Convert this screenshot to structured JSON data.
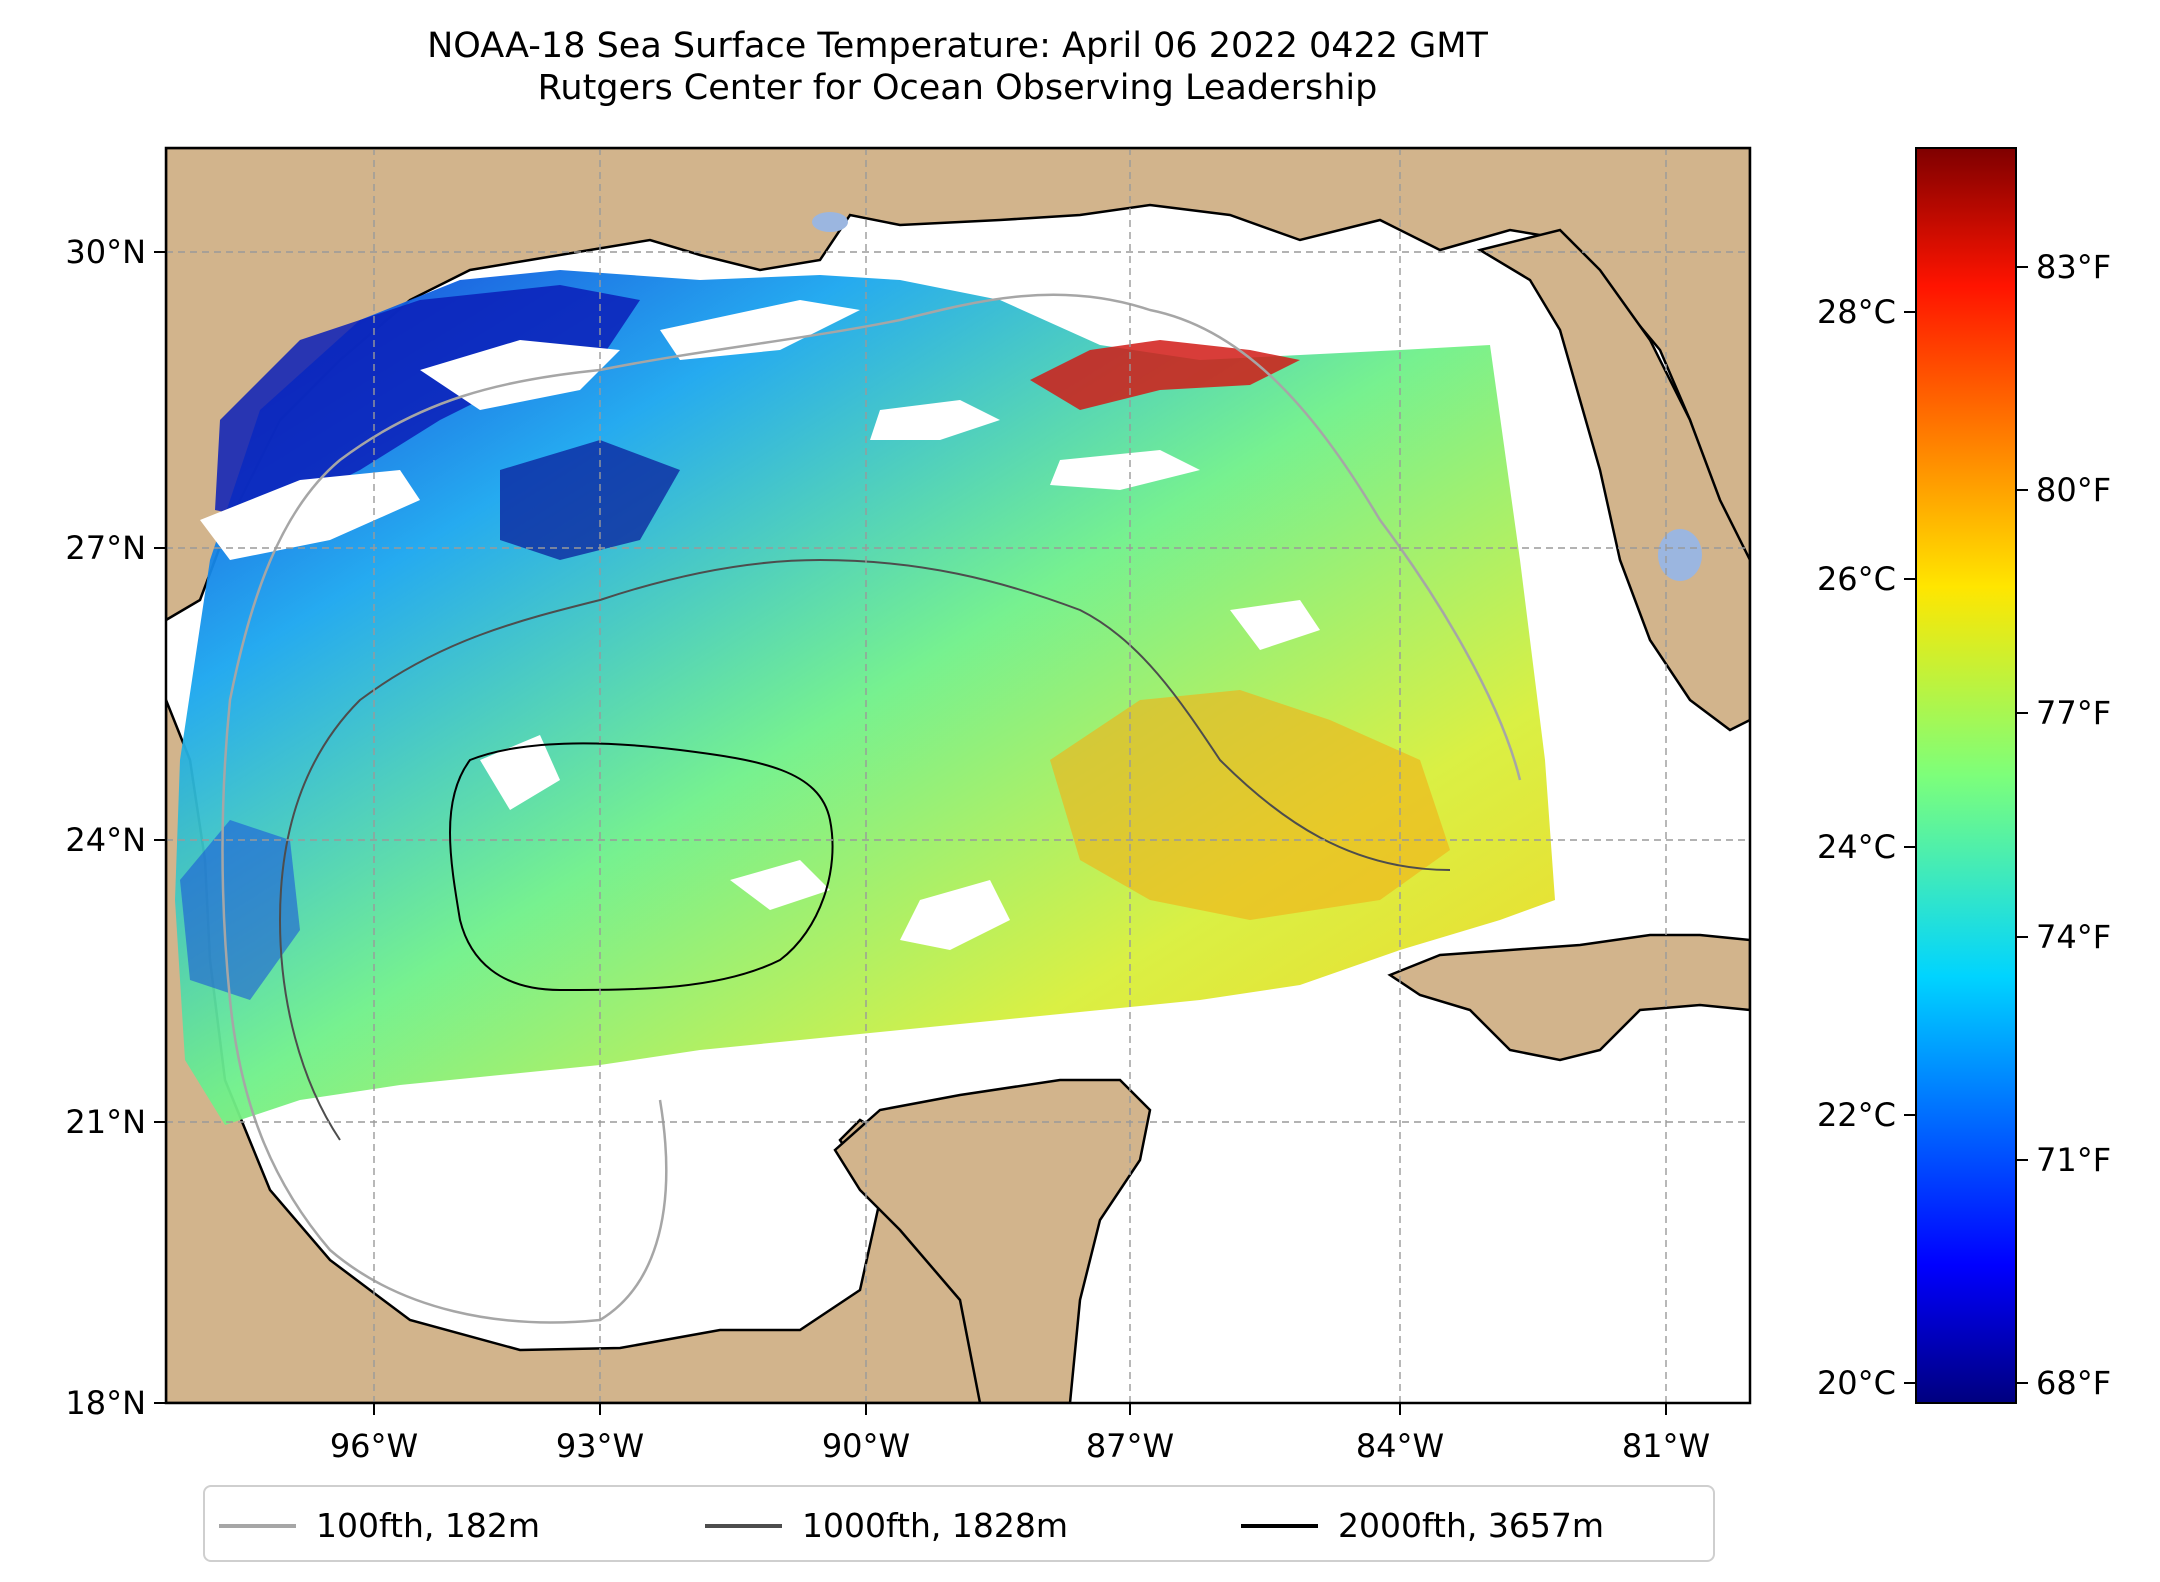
{
  "title": "NOAA-18 Sea Surface Temperature: April 06 2022 0422 GMT",
  "subtitle": "Rutgers Center for Ocean Observing Leadership",
  "map": {
    "lon_range": [
      -98,
      -80.5
    ],
    "lat_range": [
      18,
      31
    ],
    "lat_ticks": [
      {
        "value": 30,
        "label": "30°N"
      },
      {
        "value": 27,
        "label": "27°N"
      },
      {
        "value": 24,
        "label": "24°N"
      },
      {
        "value": 21,
        "label": "21°N"
      },
      {
        "value": 18,
        "label": "18°N"
      }
    ],
    "lon_ticks": [
      {
        "value": -96,
        "label": "96°W"
      },
      {
        "value": -93,
        "label": "93°W"
      },
      {
        "value": -90,
        "label": "90°W"
      },
      {
        "value": -87,
        "label": "87°W"
      },
      {
        "value": -84,
        "label": "84°W"
      },
      {
        "value": -81,
        "label": "81°W"
      }
    ],
    "gridlines": "dashed",
    "land_color": "#d2b48c",
    "lake_color": "#9bb6e0"
  },
  "colorbar": {
    "colormap": "jet",
    "celsius_ticks": [
      {
        "value": 20,
        "label": "20°C"
      },
      {
        "value": 22,
        "label": "22°C"
      },
      {
        "value": 24,
        "label": "24°C"
      },
      {
        "value": 26,
        "label": "26°C"
      },
      {
        "value": 28,
        "label": "28°C"
      }
    ],
    "fahrenheit_ticks": [
      {
        "value": 68,
        "label": "68°F"
      },
      {
        "value": 71,
        "label": "71°F"
      },
      {
        "value": 74,
        "label": "74°F"
      },
      {
        "value": 77,
        "label": "77°F"
      },
      {
        "value": 80,
        "label": "80°F"
      },
      {
        "value": 83,
        "label": "83°F"
      }
    ]
  },
  "legend": {
    "placement": "bottom-center",
    "items": [
      {
        "label": "100fth, 182m",
        "color": "#a6a6a6"
      },
      {
        "label": "1000fth, 1828m",
        "color": "#4d4d4d"
      },
      {
        "label": "2000fth, 3657m",
        "color": "#000000"
      }
    ]
  }
}
